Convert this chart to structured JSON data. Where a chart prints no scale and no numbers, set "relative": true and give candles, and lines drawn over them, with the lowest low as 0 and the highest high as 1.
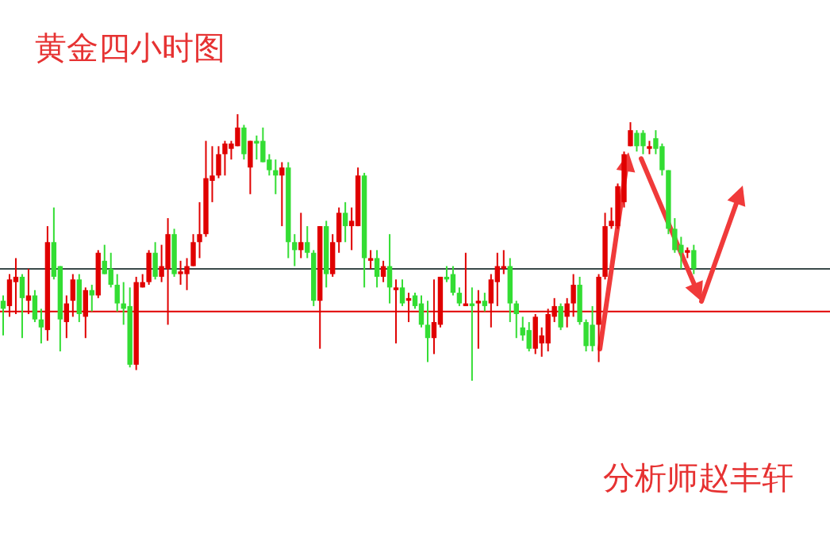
{
  "chart_data": {
    "type": "candlestick",
    "title": "黄金四小时图",
    "relative": true,
    "annotations": [
      "分析师赵丰轩"
    ],
    "categories": [
      null,
      null,
      null,
      null,
      null,
      null,
      null,
      null,
      null,
      null,
      null,
      null,
      null,
      null,
      null,
      null,
      null,
      null,
      null,
      null,
      null,
      null,
      null,
      null,
      null,
      null,
      null,
      null,
      null,
      null,
      null,
      null,
      null,
      null,
      null,
      null,
      null,
      null,
      null,
      null,
      null,
      null,
      null,
      null,
      null,
      null,
      null,
      null,
      null,
      null,
      null,
      null,
      null,
      null,
      null,
      null,
      null,
      null,
      null,
      null,
      null,
      null,
      null,
      null,
      null,
      null,
      null,
      null,
      null,
      null,
      null,
      null,
      null,
      null,
      null,
      null,
      null,
      null,
      null,
      null,
      null,
      null,
      null,
      null,
      null,
      null,
      null,
      null,
      null,
      null,
      null,
      null,
      null,
      null,
      null,
      null,
      null,
      null,
      null,
      null,
      null,
      null,
      null,
      null,
      null,
      null,
      null,
      null,
      null,
      null
    ],
    "ohlc": [
      [
        0.3,
        0.32,
        0.17,
        0.27
      ],
      [
        0.28,
        0.4,
        0.24,
        0.38
      ],
      [
        0.37,
        0.46,
        0.25,
        0.39
      ],
      [
        0.39,
        0.4,
        0.16,
        0.31
      ],
      [
        0.3,
        0.42,
        0.25,
        0.32
      ],
      [
        0.32,
        0.34,
        0.22,
        0.23
      ],
      [
        0.23,
        0.27,
        0.14,
        0.2
      ],
      [
        0.19,
        0.58,
        0.15,
        0.52
      ],
      [
        0.52,
        0.65,
        0.38,
        0.39
      ],
      [
        0.43,
        0.43,
        0.11,
        0.23
      ],
      [
        0.22,
        0.32,
        0.16,
        0.29
      ],
      [
        0.3,
        0.4,
        0.24,
        0.38
      ],
      [
        0.38,
        0.4,
        0.22,
        0.25
      ],
      [
        0.24,
        0.35,
        0.16,
        0.34
      ],
      [
        0.34,
        0.36,
        0.26,
        0.32
      ],
      [
        0.32,
        0.49,
        0.31,
        0.48
      ],
      [
        0.45,
        0.51,
        0.4,
        0.4
      ],
      [
        0.42,
        0.48,
        0.35,
        0.36
      ],
      [
        0.36,
        0.4,
        0.26,
        0.29
      ],
      [
        0.29,
        0.37,
        0.21,
        0.27
      ],
      [
        0.28,
        0.35,
        0.05,
        0.06
      ],
      [
        0.06,
        0.39,
        0.04,
        0.37
      ],
      [
        0.35,
        0.4,
        0.35,
        0.37
      ],
      [
        0.37,
        0.49,
        0.36,
        0.48
      ],
      [
        0.48,
        0.52,
        0.38,
        0.39
      ],
      [
        0.39,
        0.51,
        0.37,
        0.43
      ],
      [
        0.42,
        0.61,
        0.21,
        0.55
      ],
      [
        0.55,
        0.57,
        0.39,
        0.4
      ],
      [
        0.4,
        0.45,
        0.36,
        0.41
      ],
      [
        0.4,
        0.46,
        0.34,
        0.43
      ],
      [
        0.43,
        0.55,
        0.43,
        0.52
      ],
      [
        0.52,
        0.67,
        0.46,
        0.55
      ],
      [
        0.55,
        0.9,
        0.54,
        0.76
      ],
      [
        0.75,
        0.88,
        0.67,
        0.77
      ],
      [
        0.77,
        0.88,
        0.76,
        0.85
      ],
      [
        0.85,
        0.9,
        0.77,
        0.89
      ],
      [
        0.87,
        0.9,
        0.83,
        0.89
      ],
      [
        0.88,
        1.0,
        0.88,
        0.95
      ],
      [
        0.95,
        0.96,
        0.83,
        0.85
      ],
      [
        0.8,
        0.9,
        0.7,
        0.9
      ],
      [
        0.9,
        0.92,
        0.83,
        0.89
      ],
      [
        0.9,
        0.95,
        0.82,
        0.82
      ],
      [
        0.83,
        0.85,
        0.77,
        0.79
      ],
      [
        0.79,
        0.83,
        0.7,
        0.77
      ],
      [
        0.77,
        0.82,
        0.58,
        0.8
      ],
      [
        0.8,
        0.82,
        0.46,
        0.52
      ],
      [
        0.52,
        0.55,
        0.43,
        0.49
      ],
      [
        0.49,
        0.63,
        0.46,
        0.52
      ],
      [
        0.52,
        0.58,
        0.46,
        0.48
      ],
      [
        0.48,
        0.49,
        0.28,
        0.3
      ],
      [
        0.3,
        0.58,
        0.12,
        0.58
      ],
      [
        0.58,
        0.6,
        0.35,
        0.4
      ],
      [
        0.4,
        0.55,
        0.39,
        0.52
      ],
      [
        0.52,
        0.65,
        0.48,
        0.63
      ],
      [
        0.63,
        0.67,
        0.52,
        0.58
      ],
      [
        0.58,
        0.65,
        0.49,
        0.6
      ],
      [
        0.58,
        0.8,
        0.58,
        0.77
      ],
      [
        0.77,
        0.78,
        0.35,
        0.46
      ],
      [
        0.45,
        0.49,
        0.42,
        0.46
      ],
      [
        0.46,
        0.49,
        0.35,
        0.39
      ],
      [
        0.39,
        0.45,
        0.37,
        0.43
      ],
      [
        0.43,
        0.55,
        0.29,
        0.35
      ],
      [
        0.34,
        0.38,
        0.14,
        0.35
      ],
      [
        0.35,
        0.38,
        0.28,
        0.29
      ],
      [
        0.3,
        0.33,
        0.22,
        0.31
      ],
      [
        0.32,
        0.33,
        0.27,
        0.28
      ],
      [
        0.29,
        0.32,
        0.2,
        0.21
      ],
      [
        0.21,
        0.3,
        0.07,
        0.16
      ],
      [
        0.16,
        0.38,
        0.1,
        0.22
      ],
      [
        0.21,
        0.39,
        0.2,
        0.39
      ],
      [
        0.39,
        0.43,
        0.37,
        0.38
      ],
      [
        0.4,
        0.43,
        0.32,
        0.33
      ],
      [
        0.33,
        0.35,
        0.28,
        0.29
      ],
      [
        0.28,
        0.48,
        0.28,
        0.29
      ],
      [
        0.29,
        0.35,
        0.0,
        0.28
      ],
      [
        0.29,
        0.34,
        0.12,
        0.3
      ],
      [
        0.3,
        0.33,
        0.26,
        0.28
      ],
      [
        0.29,
        0.4,
        0.2,
        0.38
      ],
      [
        0.37,
        0.48,
        0.28,
        0.43
      ],
      [
        0.42,
        0.49,
        0.4,
        0.43
      ],
      [
        0.43,
        0.46,
        0.22,
        0.29
      ],
      [
        0.29,
        0.3,
        0.16,
        0.25
      ],
      [
        0.2,
        0.24,
        0.15,
        0.17
      ],
      [
        0.19,
        0.22,
        0.11,
        0.12
      ],
      [
        0.12,
        0.25,
        0.1,
        0.24
      ],
      [
        0.14,
        0.2,
        0.09,
        0.17
      ],
      [
        0.14,
        0.27,
        0.11,
        0.25
      ],
      [
        0.24,
        0.31,
        0.22,
        0.28
      ],
      [
        0.28,
        0.29,
        0.19,
        0.2
      ],
      [
        0.24,
        0.31,
        0.2,
        0.29
      ],
      [
        0.29,
        0.4,
        0.24,
        0.36
      ],
      [
        0.36,
        0.39,
        0.21,
        0.22
      ],
      [
        0.22,
        0.23,
        0.11,
        0.13
      ],
      [
        0.21,
        0.28,
        0.11,
        0.13
      ],
      [
        0.21,
        0.4,
        0.07,
        0.39
      ],
      [
        0.39,
        0.63,
        0.38,
        0.58
      ],
      [
        0.58,
        0.65,
        0.57,
        0.6
      ],
      [
        0.58,
        0.74,
        0.57,
        0.73
      ],
      [
        0.67,
        0.86,
        0.65,
        0.85
      ],
      [
        0.88,
        0.97,
        0.88,
        0.94
      ],
      [
        0.93,
        0.94,
        0.86,
        0.88
      ],
      [
        0.93,
        0.94,
        0.85,
        0.88
      ],
      [
        0.87,
        0.9,
        0.85,
        0.88
      ],
      [
        0.91,
        0.94,
        0.85,
        0.87
      ],
      [
        0.88,
        0.89,
        0.77,
        0.79
      ],
      [
        0.79,
        0.79,
        0.55,
        0.57
      ],
      [
        0.57,
        0.61,
        0.48,
        0.49
      ],
      [
        0.51,
        0.54,
        0.42,
        0.48
      ],
      [
        0.48,
        0.5,
        0.46,
        0.49
      ],
      [
        0.49,
        0.51,
        0.4,
        0.42
      ]
    ],
    "colors": [
      "#33dd33",
      "#e00000",
      "#e00000",
      "#33dd33",
      "#e00000",
      "#33dd33",
      "#33dd33",
      "#e00000",
      "#33dd33",
      "#33dd33",
      "#e00000",
      "#e00000",
      "#33dd33",
      "#e00000",
      "#33dd33",
      "#e00000",
      "#33dd33",
      "#33dd33",
      "#33dd33",
      "#33dd33",
      "#33dd33",
      "#e00000",
      "#e00000",
      "#e00000",
      "#33dd33",
      "#e00000",
      "#e00000",
      "#33dd33",
      "#e00000",
      "#e00000",
      "#e00000",
      "#e00000",
      "#e00000",
      "#e00000",
      "#e00000",
      "#e00000",
      "#e00000",
      "#e00000",
      "#33dd33",
      "#e00000",
      "#33dd33",
      "#33dd33",
      "#33dd33",
      "#33dd33",
      "#e00000",
      "#33dd33",
      "#33dd33",
      "#e00000",
      "#33dd33",
      "#33dd33",
      "#e00000",
      "#33dd33",
      "#e00000",
      "#e00000",
      "#33dd33",
      "#e00000",
      "#e00000",
      "#33dd33",
      "#e00000",
      "#33dd33",
      "#e00000",
      "#33dd33",
      "#e00000",
      "#33dd33",
      "#e00000",
      "#33dd33",
      "#33dd33",
      "#33dd33",
      "#e00000",
      "#e00000",
      "#33dd33",
      "#33dd33",
      "#33dd33",
      "#e00000",
      "#33dd33",
      "#e00000",
      "#33dd33",
      "#e00000",
      "#e00000",
      "#e00000",
      "#33dd33",
      "#33dd33",
      "#33dd33",
      "#33dd33",
      "#e00000",
      "#e00000",
      "#e00000",
      "#e00000",
      "#33dd33",
      "#e00000",
      "#e00000",
      "#33dd33",
      "#33dd33",
      "#33dd33",
      "#e00000",
      "#e00000",
      "#e00000",
      "#e00000",
      "#e00000",
      "#e00000",
      "#33dd33",
      "#33dd33",
      "#e00000",
      "#33dd33",
      "#33dd33",
      "#33dd33",
      "#33dd33",
      "#33dd33",
      "#e00000",
      "#33dd33"
    ],
    "ref_lines": [
      {
        "axis": "y",
        "value": 0.42,
        "color": "#3a4a4a"
      },
      {
        "axis": "y",
        "value": 0.26,
        "color": "#e00000"
      }
    ]
  }
}
